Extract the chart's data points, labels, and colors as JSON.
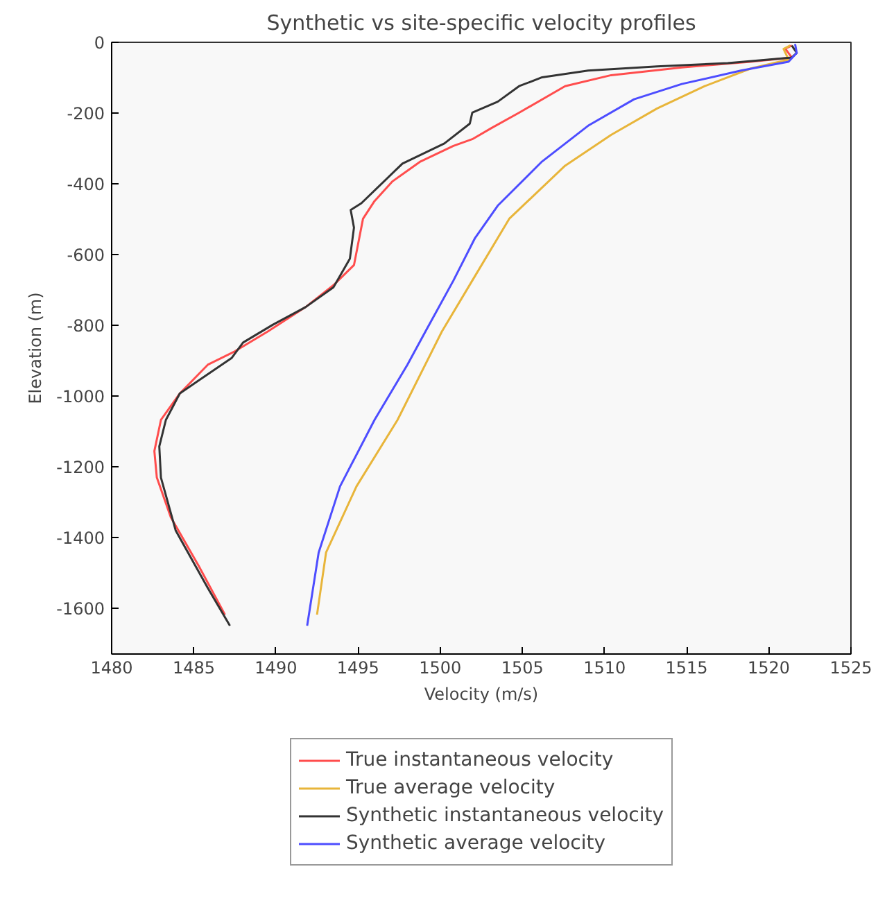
{
  "chart_data": {
    "type": "line",
    "title": "Synthetic vs site-specific velocity profiles",
    "xlabel": "Velocity (m/s)",
    "ylabel": "Elevation (m)",
    "xlim": [
      1480,
      1525
    ],
    "ylim": [
      -1730,
      0
    ],
    "xticks": [
      1480,
      1485,
      1490,
      1495,
      1500,
      1505,
      1510,
      1515,
      1520,
      1525
    ],
    "yticks": [
      -1600,
      -1400,
      -1200,
      -1000,
      -800,
      -600,
      -400,
      -200,
      0
    ],
    "grid": false,
    "legend": "bottom",
    "marker": "none",
    "line_style": "solid",
    "series": [
      {
        "name": "True instantaneous velocity",
        "color": "#ff4d4d",
        "x": [
          1521.4,
          1521.0,
          1521.4,
          1518.9,
          1514.7,
          1510.4,
          1507.6,
          1504.8,
          1503.1,
          1501.95,
          1500.8,
          1498.8,
          1497.1,
          1496.0,
          1495.3,
          1494.75,
          1493.5,
          1491.8,
          1489.5,
          1487.5,
          1485.85,
          1484.15,
          1483.0,
          1482.6,
          1482.75,
          1483.6,
          1485.3,
          1486.9
        ],
        "values": [
          -9,
          -18,
          -43,
          -55,
          -71,
          -93,
          -124,
          -199,
          -243,
          -274,
          -293,
          -337,
          -393,
          -449,
          -499,
          -630,
          -687,
          -749,
          -818,
          -874,
          -912,
          -993,
          -1068,
          -1156,
          -1231,
          -1343,
          -1481,
          -1619
        ]
      },
      {
        "name": "True average velocity",
        "color": "#e8b53a",
        "x": [
          1521.3,
          1520.9,
          1521.2,
          1518.9,
          1516.1,
          1513.2,
          1510.4,
          1507.6,
          1504.2,
          1501.95,
          1500.1,
          1497.4,
          1494.9,
          1493.05,
          1492.5
        ],
        "values": [
          -9,
          -19,
          -49,
          -74,
          -124,
          -187,
          -262,
          -349,
          -499,
          -674,
          -818,
          -1068,
          -1256,
          -1443,
          -1619
        ]
      },
      {
        "name": "Synthetic instantaneous velocity",
        "color": "#333333",
        "x": [
          1521.4,
          1521.7,
          1521.4,
          1517.5,
          1513.2,
          1509.0,
          1506.2,
          1504.8,
          1503.5,
          1501.95,
          1501.8,
          1500.25,
          1497.7,
          1495.2,
          1494.55,
          1494.75,
          1494.5,
          1493.5,
          1491.8,
          1489.8,
          1488.0,
          1487.3,
          1485.3,
          1484.15,
          1483.3,
          1482.9,
          1483.0,
          1483.9,
          1485.85,
          1487.2
        ],
        "values": [
          -9,
          -30,
          -43,
          -59,
          -68,
          -80,
          -99,
          -124,
          -168,
          -199,
          -230,
          -286,
          -343,
          -455,
          -474,
          -524,
          -612,
          -693,
          -749,
          -799,
          -849,
          -893,
          -956,
          -993,
          -1068,
          -1143,
          -1231,
          -1381,
          -1543,
          -1650
        ]
      },
      {
        "name": "Synthetic average velocity",
        "color": "#4d4dff",
        "x": [
          1521.6,
          1521.7,
          1521.2,
          1518.3,
          1514.7,
          1511.8,
          1509.0,
          1506.2,
          1503.5,
          1502.1,
          1500.8,
          1499.1,
          1498.0,
          1496.0,
          1493.9,
          1492.6,
          1491.9
        ],
        "values": [
          -5,
          -30,
          -55,
          -80,
          -118,
          -161,
          -236,
          -337,
          -462,
          -555,
          -674,
          -818,
          -912,
          -1068,
          -1256,
          -1443,
          -1650
        ]
      }
    ]
  }
}
